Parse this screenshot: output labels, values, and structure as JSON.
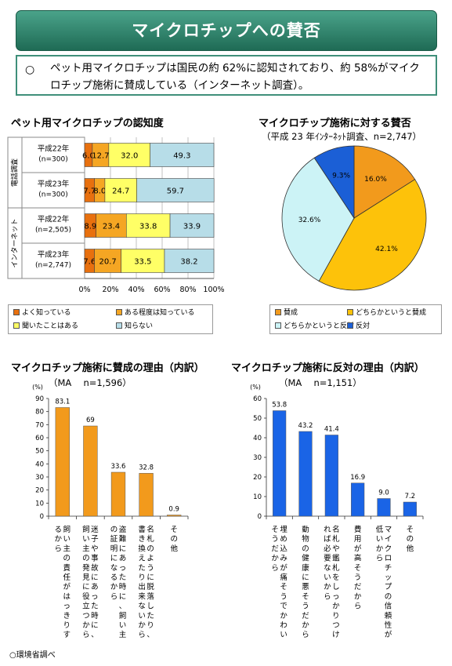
{
  "header": {
    "title": "マイクロチップへの賛否"
  },
  "summary": {
    "bullet": "○",
    "text": "ペット用マイクロチップは国民の約 62%に認知されており、約 58%がマイクロチップ施術に賛成している（インターネット調査）。"
  },
  "footer": {
    "source": "○環境省調べ"
  },
  "colors": {
    "dark_orange": "#e8700e",
    "orange": "#f5a623",
    "yellow": "#ffff66",
    "light_blue": "#b7dde8",
    "pie_light": "#ccf3f6",
    "pie_blue": "#1b5fd6",
    "bar_orange": "#f29a1c",
    "bar_blue": "#1a64e6"
  },
  "chart_data": [
    {
      "type": "bar",
      "orientation": "horizontal-stacked",
      "title": "ペット用マイクロチップの認知度",
      "groups": [
        "電話調査",
        "インターネット"
      ],
      "categories": [
        "平成22年",
        "平成23年",
        "平成22年",
        "平成23年"
      ],
      "sample_sizes": [
        "(n=300)",
        "(n=300)",
        "(n=2,505)",
        "(n=2,747)"
      ],
      "series": [
        {
          "name": "よく知っている",
          "values": [
            6.0,
            7.7,
            8.9,
            7.6
          ]
        },
        {
          "name": "ある程度は知っている",
          "values": [
            12.7,
            8.0,
            23.4,
            20.7
          ]
        },
        {
          "name": "聞いたことはある",
          "values": [
            32.0,
            24.7,
            33.8,
            33.5
          ]
        },
        {
          "name": "知らない",
          "values": [
            49.3,
            59.7,
            33.9,
            38.2
          ]
        }
      ],
      "data_labels": [
        [
          "6.0",
          "12.7",
          "32.0",
          "49.3"
        ],
        [
          "7.7",
          "8.0",
          "24.7",
          "59.7"
        ],
        [
          "8.9",
          "23.4",
          "33.8",
          "33.9"
        ],
        [
          "7.6",
          "20.7",
          "33.5",
          "38.2"
        ]
      ],
      "xticks": [
        "0%",
        "20%",
        "40%",
        "60%",
        "80%",
        "100%"
      ],
      "xlim": [
        0,
        100
      ]
    },
    {
      "type": "pie",
      "title": "マイクロチップ施術に対する賛否",
      "subtitle": "（平成 23 年ｲﾝﾀｰﾈｯﾄ調査、n=2,747）",
      "labels": [
        "賛成",
        "どちらかというと賛成",
        "どちらかというと反対",
        "反対"
      ],
      "values": [
        16.0,
        42.1,
        32.6,
        9.3
      ],
      "value_labels": [
        "16.0%",
        "42.1%",
        "32.6%",
        "9.3%"
      ]
    },
    {
      "type": "bar",
      "title": "マイクロチップ施術に賛成の理由（内訳）",
      "subtitle": "（MA　 n=1,596）",
      "ylabel": "(%)",
      "categories": [
        "飼い主の責任がはっきりするから",
        "迷子や事故にあった時に、飼い主の発見に役立つから",
        "盗難にあった時に、飼い主の証明になるから",
        "名札のように脱落したり、書き換えたり出来ないから",
        "その他"
      ],
      "values": [
        83.1,
        69,
        33.6,
        32.8,
        0.9
      ],
      "value_labels": [
        "83.1",
        "69",
        "33.6",
        "32.8",
        "0.9"
      ],
      "yticks": [
        "0",
        "10",
        "20",
        "30",
        "40",
        "50",
        "60",
        "70",
        "80",
        "90"
      ],
      "ylim": [
        0,
        90
      ]
    },
    {
      "type": "bar",
      "title": "マイクロチップ施術に反対の理由（内訳）",
      "subtitle": "（MA　 n=1,151）",
      "ylabel": "(%)",
      "categories": [
        "埋め込みが痛そうでかわいそうだから",
        "動物の健康に悪そうだから",
        "名札や鑑札をしっかりつければ必要ないから",
        "費用が高そうだから",
        "マイクロチップの信頼性が低いから",
        "その他"
      ],
      "values": [
        53.8,
        43.2,
        41.4,
        16.9,
        9.0,
        7.2
      ],
      "value_labels": [
        "53.8",
        "43.2",
        "41.4",
        "16.9",
        "9.0",
        "7.2"
      ],
      "yticks": [
        "0",
        "10",
        "20",
        "30",
        "40",
        "50",
        "60"
      ],
      "ylim": [
        0,
        60
      ]
    }
  ]
}
